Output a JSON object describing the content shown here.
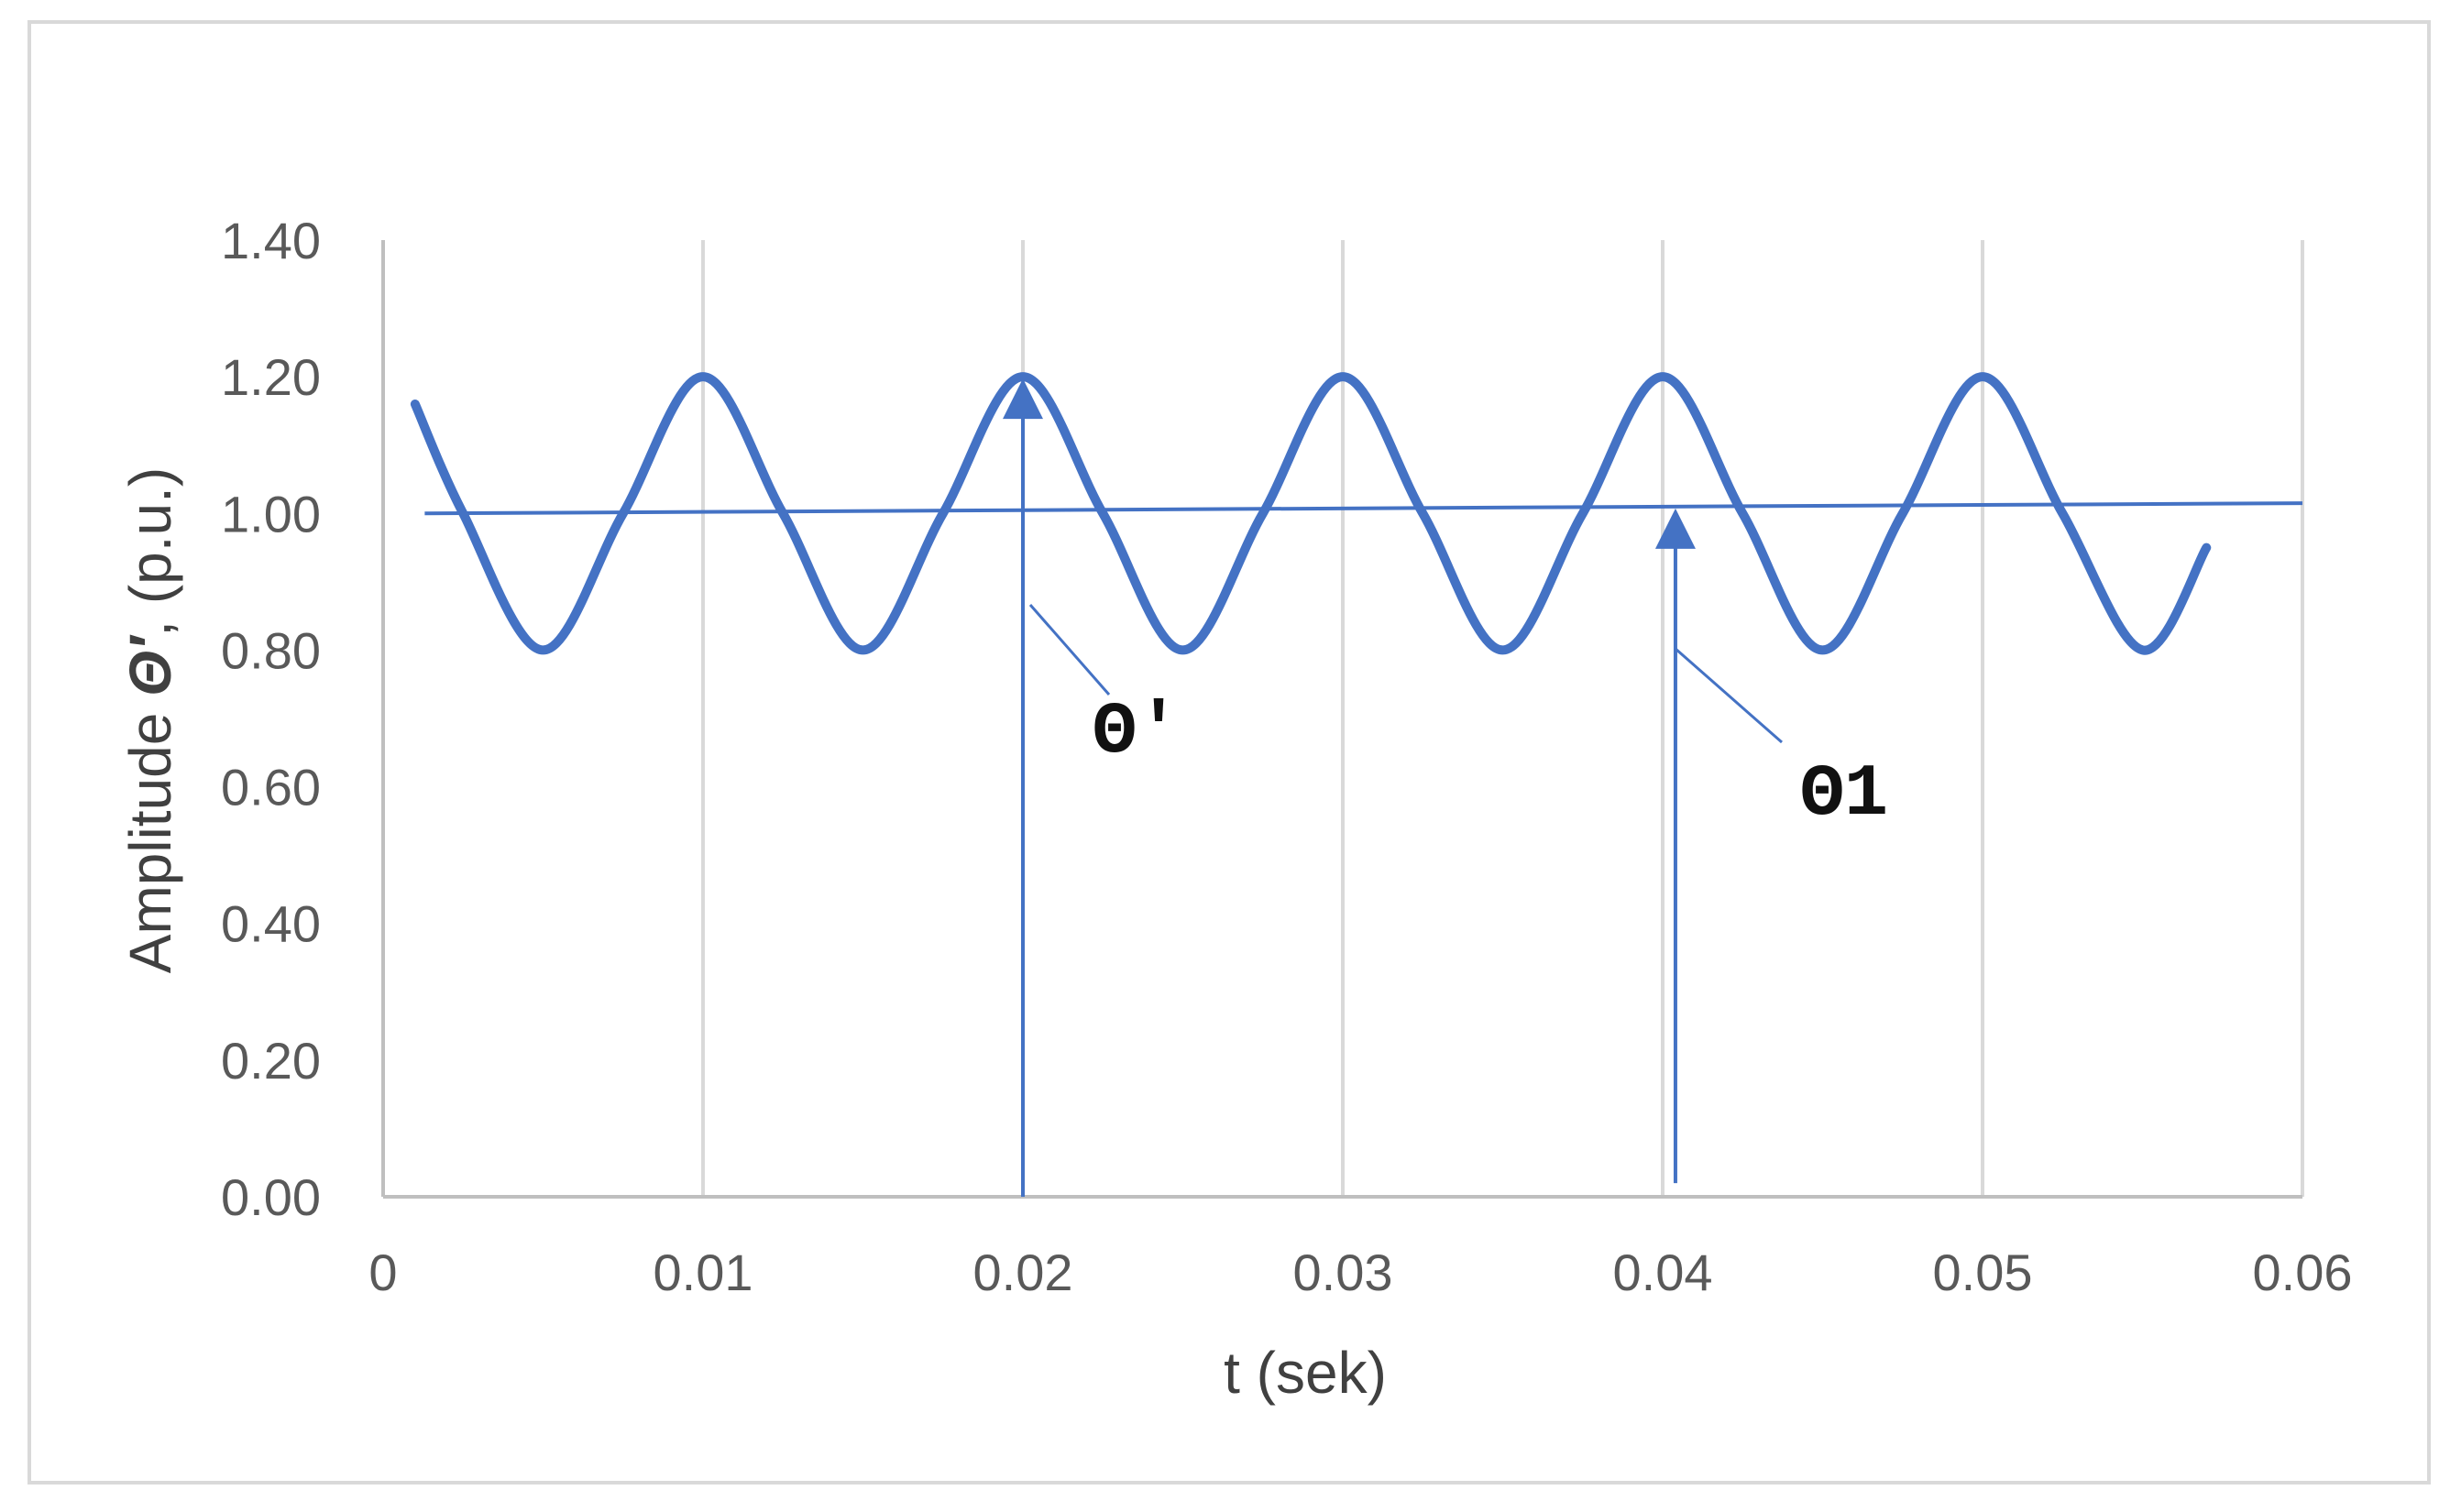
{
  "chart_data": {
    "type": "line",
    "title": "",
    "xlabel": "t  (sek)",
    "ylabel_parts": [
      "Amplitude ",
      "Θ′",
      ", (p.u.)"
    ],
    "xlim": [
      0,
      0.06
    ],
    "ylim": [
      0,
      1.4
    ],
    "x_ticks": [
      0,
      0.01,
      0.02,
      0.03,
      0.04,
      0.05,
      0.06
    ],
    "x_tick_labels": [
      "0",
      "0.01",
      "0.02",
      "0.03",
      "0.04",
      "0.05",
      "0.06"
    ],
    "y_ticks": [
      0,
      0.2,
      0.4,
      0.6,
      0.8,
      1.0,
      1.2,
      1.4
    ],
    "y_tick_labels": [
      "0.00",
      "0.20",
      "0.40",
      "0.60",
      "0.80",
      "1.00",
      "1.20",
      "1.40"
    ],
    "grid": "vertical",
    "legend": "none",
    "series": [
      {
        "x": [
          0.001,
          0.0025,
          0.005,
          0.0075,
          0.01,
          0.0125,
          0.015,
          0.0175,
          0.02,
          0.0225,
          0.025,
          0.0275,
          0.03,
          0.0325,
          0.035,
          0.0375,
          0.04,
          0.0425,
          0.045,
          0.0475,
          0.05,
          0.0525,
          0.055,
          0.057
        ],
        "y": [
          1.16,
          1.0,
          0.8,
          1.0,
          1.2,
          1.0,
          0.8,
          1.0,
          1.2,
          1.0,
          0.8,
          1.0,
          1.2,
          1.0,
          0.8,
          1.0,
          1.2,
          1.0,
          0.8,
          1.0,
          1.2,
          1.0,
          0.8,
          0.95
        ]
      },
      {
        "x": [
          0.0013,
          0.06
        ],
        "y": [
          1.0,
          1.015
        ]
      }
    ],
    "annotations": [
      {
        "text": "Θ'",
        "arrow_x": 0.02,
        "arrow_from": 0.0,
        "arrow_to": 1.2
      },
      {
        "text": "Θ1",
        "arrow_x": 0.0404,
        "arrow_from": 0.02,
        "arrow_to": 1.01
      }
    ],
    "colors": {
      "series": "#4472c4",
      "grid": "#d9d9d9",
      "axis": "#bfbfbf",
      "tick_text": "#595959"
    }
  }
}
